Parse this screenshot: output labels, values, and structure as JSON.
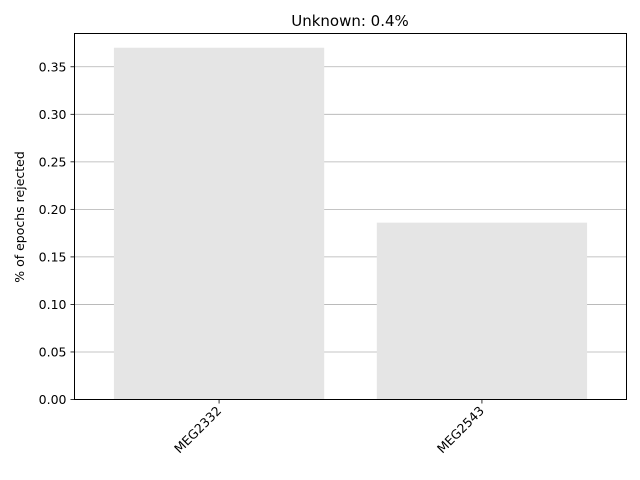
{
  "chart_data": {
    "type": "bar",
    "title": "Unknown: 0.4%",
    "xlabel": "",
    "ylabel": "% of epochs rejected",
    "categories": [
      "MEG2332",
      "MEG2543"
    ],
    "values": [
      0.37,
      0.186
    ],
    "ylim": [
      0,
      0.385
    ],
    "yticks": [
      0.0,
      0.05,
      0.1,
      0.15,
      0.2,
      0.25,
      0.3,
      0.35
    ],
    "ytick_labels": [
      "0.00",
      "0.05",
      "0.10",
      "0.15",
      "0.20",
      "0.25",
      "0.30",
      "0.35"
    ],
    "grid": "y",
    "bar_color": "#e5e5e5",
    "grid_color": "#b0b0b0"
  }
}
